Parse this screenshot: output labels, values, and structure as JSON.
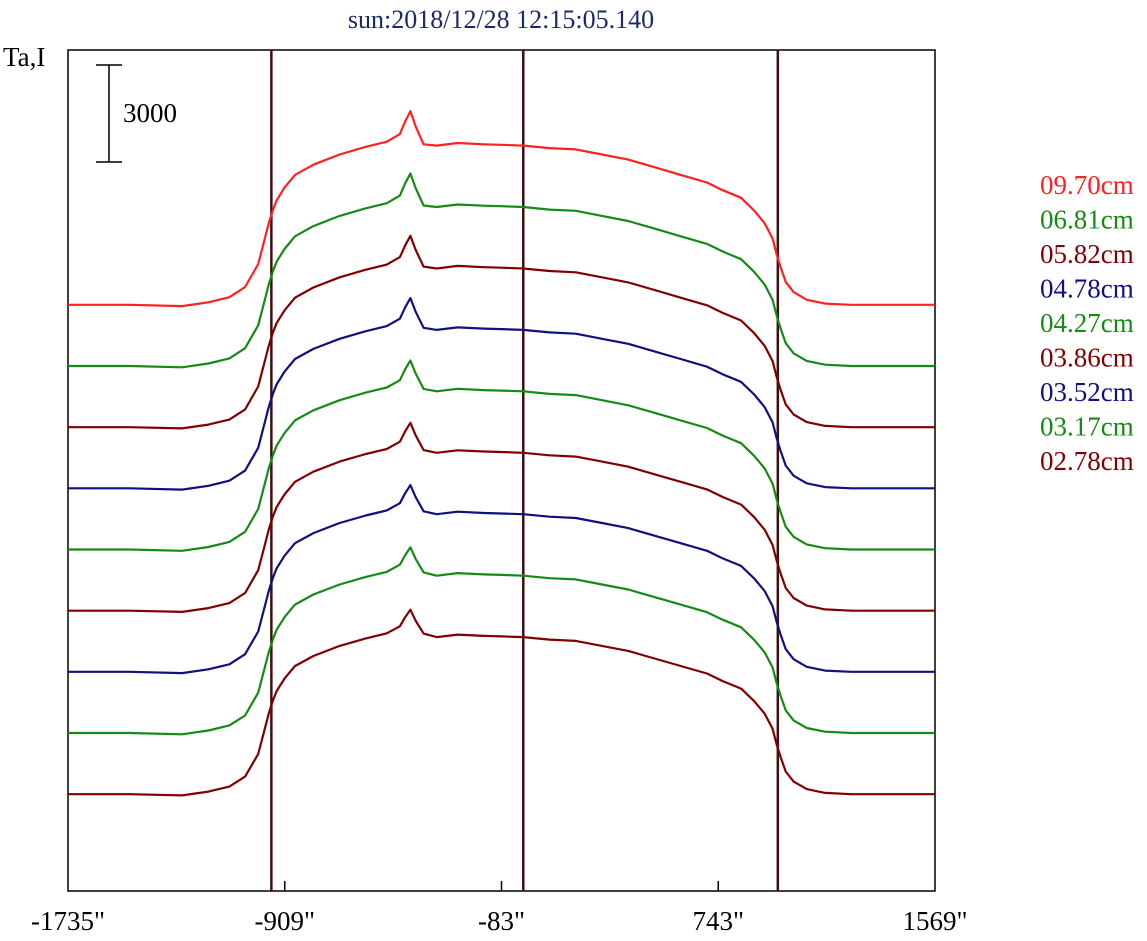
{
  "chart_data": {
    "type": "line",
    "title": "sun:2018/12/28 12:15:05.140",
    "ylabel": "Ta,I",
    "scale_bar_label": "3000",
    "scale_bar_value": 3000,
    "xlabel": "",
    "xlim": [
      -1735,
      1569
    ],
    "x_ticks": [
      -1735,
      -909,
      -83,
      743,
      1569
    ],
    "x_tick_labels": [
      "-1735\"",
      "-909\"",
      "-83\"",
      "743\"",
      "1569\""
    ],
    "vertical_lines": [
      -960,
      0,
      970
    ],
    "grid": false,
    "legend_position": "right",
    "series": [
      {
        "name": "09.70cm",
        "color": "#ff2020",
        "offset": 21000
      },
      {
        "name": "06.81cm",
        "color": "#158a15",
        "offset": 18600
      },
      {
        "name": "05.82cm",
        "color": "#800000",
        "offset": 16200
      },
      {
        "name": "04.78cm",
        "color": "#101080",
        "offset": 13800
      },
      {
        "name": "04.27cm",
        "color": "#158a15",
        "offset": 11400
      },
      {
        "name": "03.86cm",
        "color": "#800000",
        "offset": 9000
      },
      {
        "name": "03.52cm",
        "color": "#101080",
        "offset": 6600
      },
      {
        "name": "03.17cm",
        "color": "#158a15",
        "offset": 4200
      },
      {
        "name": "02.78cm",
        "color": "#800000",
        "offset": 1800
      }
    ],
    "profile_x": [
      -1735,
      -1500,
      -1300,
      -1200,
      -1120,
      -1060,
      -1010,
      -985,
      -970,
      -955,
      -940,
      -910,
      -870,
      -800,
      -700,
      -600,
      -520,
      -470,
      -450,
      -430,
      -410,
      -380,
      -330,
      -250,
      -150,
      -83,
      0,
      100,
      200,
      300,
      400,
      500,
      600,
      700,
      760,
      830,
      880,
      920,
      950,
      965,
      980,
      1000,
      1030,
      1080,
      1150,
      1250,
      1400,
      1569
    ],
    "profile_y": [
      0,
      0,
      -50,
      100,
      300,
      700,
      1600,
      2600,
      3200,
      3700,
      4100,
      4600,
      5100,
      5500,
      5900,
      6200,
      6400,
      6700,
      7200,
      7600,
      7000,
      6300,
      6250,
      6350,
      6300,
      6280,
      6250,
      6150,
      6100,
      5900,
      5700,
      5400,
      5100,
      4800,
      4500,
      4200,
      3700,
      3200,
      2600,
      2000,
      1500,
      900,
      500,
      200,
      50,
      0,
      0,
      0
    ],
    "y_range": [
      -2000,
      31000
    ]
  },
  "legend": {
    "items": [
      "09.70cm",
      "06.81cm",
      "05.82cm",
      "04.78cm",
      "04.27cm",
      "03.86cm",
      "03.52cm",
      "03.17cm",
      "02.78cm"
    ]
  }
}
